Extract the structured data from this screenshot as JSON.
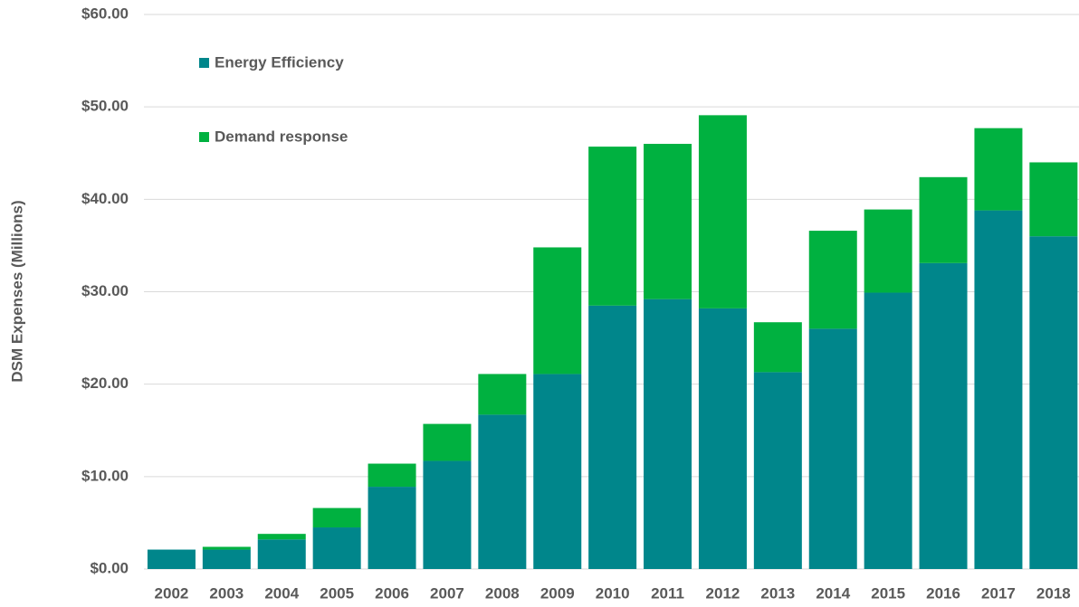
{
  "chart_data": {
    "type": "stacked_bar",
    "y_axis_label": "DSM Expenses (Millions)",
    "categories": [
      "2002",
      "2003",
      "2004",
      "2005",
      "2006",
      "2007",
      "2008",
      "2009",
      "2010",
      "2011",
      "2012",
      "2013",
      "2014",
      "2015",
      "2016",
      "2017",
      "2018"
    ],
    "series": [
      {
        "name": "Energy Efficiency",
        "color": "#00868b",
        "values": [
          2.1,
          2.1,
          3.2,
          4.5,
          8.9,
          11.7,
          16.7,
          21.1,
          28.5,
          29.2,
          28.2,
          21.3,
          26.0,
          29.9,
          33.1,
          38.8,
          36.0
        ]
      },
      {
        "name": "Demand response",
        "color": "#00b140",
        "values": [
          0,
          0.3,
          0.6,
          2.1,
          2.5,
          4.0,
          4.4,
          13.7,
          17.2,
          16.8,
          20.9,
          5.4,
          10.6,
          9.0,
          9.3,
          8.9,
          8.0
        ]
      }
    ],
    "ylim": [
      0,
      60
    ],
    "yticks": [
      {
        "value": 0,
        "label": "$0.00"
      },
      {
        "value": 10,
        "label": "$10.00"
      },
      {
        "value": 20,
        "label": "$20.00"
      },
      {
        "value": 30,
        "label": "$30.00"
      },
      {
        "value": 40,
        "label": "$40.00"
      },
      {
        "value": 50,
        "label": "$50.00"
      },
      {
        "value": 60,
        "label": "$60.00"
      }
    ],
    "grid": true,
    "legend": "top-left"
  }
}
